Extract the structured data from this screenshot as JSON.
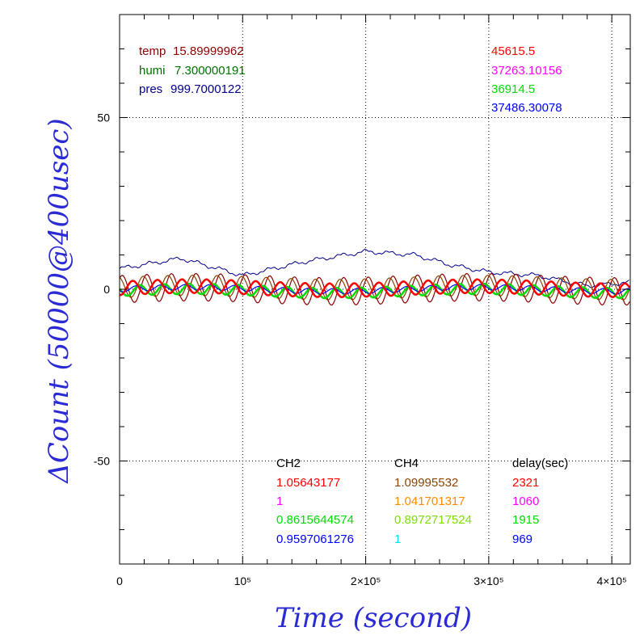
{
  "chart_data": {
    "type": "line",
    "xlabel": "Time (second)",
    "ylabel": "ΔCount (50000@400usec)",
    "xlim": [
      0,
      415000
    ],
    "ylim": [
      -80,
      80
    ],
    "grid": true,
    "x_ticks": [
      {
        "value": 0,
        "label": "0"
      },
      {
        "value": 100000,
        "label": "10⁵"
      },
      {
        "value": 200000,
        "label": "2×10⁵"
      },
      {
        "value": 300000,
        "label": "3×10⁵"
      },
      {
        "value": 400000,
        "label": "4×10⁵"
      }
    ],
    "y_ticks": [
      {
        "value": 50,
        "label": "50"
      },
      {
        "value": 0,
        "label": "0"
      },
      {
        "value": -50,
        "label": "-50"
      }
    ],
    "env": [
      {
        "label": "temp",
        "value": "15.89999962",
        "color": "#8b0000"
      },
      {
        "label": "humi",
        "value": "7.300000191",
        "color": "#007000"
      },
      {
        "label": "pres",
        "value": "999.7000122",
        "color": "#00008b"
      }
    ],
    "corner_values": [
      {
        "value": "45615.5",
        "color": "#ff0000"
      },
      {
        "value": "37263.10156",
        "color": "#ff00ff"
      },
      {
        "value": "36914.5",
        "color": "#00dd00"
      },
      {
        "value": "37486.30078",
        "color": "#0000ff"
      }
    ],
    "table": {
      "headers": [
        "CH2",
        "CH4",
        "delay(sec)"
      ],
      "rows": [
        {
          "ch2": "1.05643177",
          "ch2_color": "#ff0000",
          "ch4": "1.09995532",
          "ch4_color": "#8b4500",
          "delay": "2321",
          "delay_color": "#ff0000"
        },
        {
          "ch2": "1",
          "ch2_color": "#ff00ff",
          "ch4": "1.041701317",
          "ch4_color": "#ff8c00",
          "delay": "1060",
          "delay_color": "#ff00ff"
        },
        {
          "ch2": "0.8615644574",
          "ch2_color": "#00dd00",
          "ch4": "0.8972717524",
          "ch4_color": "#7fdd00",
          "delay": "1915",
          "delay_color": "#00dd00"
        },
        {
          "ch2": "0.9597061276",
          "ch2_color": "#0000ff",
          "ch4": "1",
          "ch4_color": "#00e5ee",
          "delay": "969",
          "delay_color": "#0000ff"
        }
      ]
    },
    "series": [
      {
        "color": "#00008b",
        "kind": "pres_drift",
        "approx_points": [
          [
            0,
            6
          ],
          [
            50000,
            9
          ],
          [
            100000,
            4
          ],
          [
            150000,
            8
          ],
          [
            200000,
            11
          ],
          [
            240000,
            10
          ],
          [
            270000,
            7
          ],
          [
            300000,
            5
          ],
          [
            340000,
            4
          ],
          [
            380000,
            1
          ],
          [
            415000,
            2
          ]
        ]
      },
      {
        "color": "#8b0000",
        "kind": "oscillation",
        "amplitude": 4,
        "period": 20000,
        "offset": 0
      },
      {
        "color": "#8b4500",
        "kind": "oscillation",
        "amplitude": 3,
        "period": 20000,
        "offset": 0.5
      },
      {
        "color": "#00dd00",
        "kind": "oscillation",
        "amplitude": 1.5,
        "period": 20000,
        "offset": -0.5
      },
      {
        "color": "#0000ff",
        "kind": "oscillation",
        "amplitude": 0.8,
        "period": 20000,
        "offset": 0
      },
      {
        "color": "#ff0000",
        "kind": "oscillation",
        "amplitude": 2,
        "period": 20000,
        "offset": 0.3
      }
    ]
  }
}
